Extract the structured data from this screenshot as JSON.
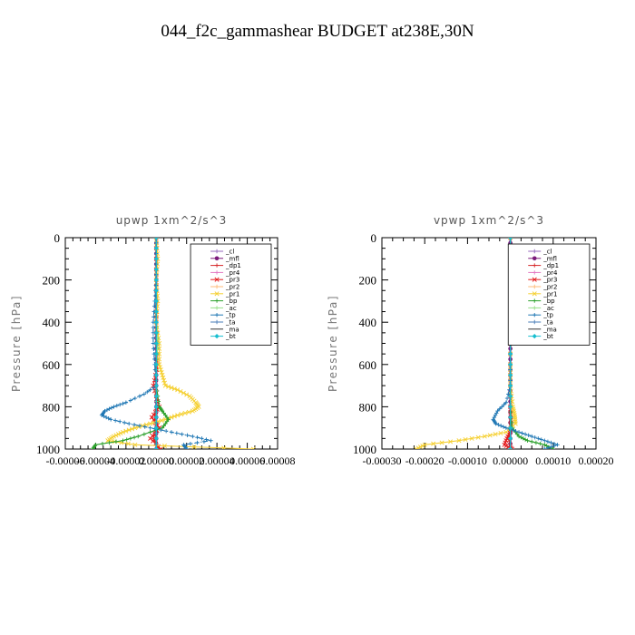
{
  "page": {
    "title": "044_f2c_gammashear  BUDGET at238E,30N"
  },
  "chart_data": [
    {
      "type": "line",
      "title": "upwp   1xm^2/s^3",
      "ylabel": "Pressure [hPa]",
      "xlim": [
        -6e-05,
        8e-05
      ],
      "ylim": [
        1000,
        0
      ],
      "y_ticks": [
        0,
        200,
        400,
        600,
        800,
        1000
      ],
      "x_tick_labels": [
        "-0.00006",
        "-0.00004",
        "-0.00002",
        "0.00000",
        "0.00002",
        "0.00004",
        "0.00006",
        "0.00008"
      ],
      "x_tick_values": [
        -6e-05,
        -4e-05,
        -2e-05,
        0.0,
        2e-05,
        4e-05,
        6e-05,
        8e-05
      ],
      "legend_position": "top-right",
      "series": [
        {
          "name": "_cl",
          "color": "#9467bd",
          "marker": "+",
          "p": [
            0,
            100,
            200,
            300,
            400,
            500,
            600,
            700,
            800,
            900,
            1000
          ],
          "v": [
            0,
            0,
            0,
            0,
            0,
            0,
            0,
            0,
            0,
            0,
            0
          ]
        },
        {
          "name": "_mfl",
          "color": "#7b1a7b",
          "marker": "dot",
          "p": [
            0,
            100,
            200,
            300,
            400,
            500,
            600,
            700,
            800,
            900,
            1000
          ],
          "v": [
            0,
            0,
            0,
            0,
            0,
            0,
            0,
            0,
            0,
            0,
            0
          ]
        },
        {
          "name": "_dp1",
          "color": "#d62728",
          "marker": "+",
          "p": [
            0,
            200,
            400,
            600,
            700,
            800,
            850,
            900,
            950,
            1000
          ],
          "v": [
            0,
            0,
            0,
            0,
            0,
            0,
            -1e-06,
            0,
            -2e-06,
            2e-06
          ]
        },
        {
          "name": "_pr4",
          "color": "#e377c2",
          "marker": "+",
          "p": [
            0,
            200,
            400,
            600,
            800,
            900,
            1000
          ],
          "v": [
            0,
            0,
            0,
            0,
            0,
            0,
            0
          ]
        },
        {
          "name": "_pr3",
          "color": "#e31a1c",
          "marker": "x",
          "p": [
            0,
            200,
            400,
            600,
            700,
            800,
            850,
            900,
            950,
            1000
          ],
          "v": [
            0,
            0,
            0,
            1e-06,
            -2e-06,
            2e-06,
            -3e-06,
            2e-06,
            -4e-06,
            3e-06
          ]
        },
        {
          "name": "_pr2",
          "color": "#ffbb78",
          "marker": "+",
          "p": [
            0,
            200,
            400,
            600,
            800,
            900,
            1000
          ],
          "v": [
            0,
            0,
            0,
            0,
            0,
            0,
            0
          ]
        },
        {
          "name": "_pr1",
          "color": "#f5d033",
          "marker": "x",
          "p": [
            0,
            100,
            200,
            300,
            400,
            500,
            600,
            650,
            700,
            720,
            750,
            780,
            800,
            820,
            840,
            860,
            880,
            900,
            920,
            940,
            960,
            980,
            1000
          ],
          "v": [
            0,
            1e-06,
            0,
            1e-06,
            0,
            2e-06,
            2e-06,
            4e-06,
            6e-06,
            1.4e-05,
            2.2e-05,
            2.6e-05,
            2.8e-05,
            2.4e-05,
            1.4e-05,
            6e-06,
            -4e-06,
            -1.4e-05,
            -2.2e-05,
            -2.8e-05,
            -3.2e-05,
            -1.4e-05,
            6.4e-05
          ]
        },
        {
          "name": "_bp",
          "color": "#2ca02c",
          "marker": "+",
          "p": [
            0,
            200,
            400,
            500,
            600,
            700,
            800,
            820,
            860,
            900,
            940,
            960,
            980,
            1000
          ],
          "v": [
            0,
            0,
            0,
            1e-06,
            0,
            0,
            2e-06,
            4e-06,
            8e-06,
            4e-06,
            -1.2e-05,
            -2.2e-05,
            -4e-05,
            -4.2e-05
          ]
        },
        {
          "name": "_ac",
          "color": "#98df8a",
          "marker": "+",
          "p": [
            0,
            200,
            400,
            500,
            600,
            700,
            800,
            900,
            1000
          ],
          "v": [
            0,
            0,
            0,
            1e-06,
            0,
            0,
            0,
            0,
            0
          ]
        },
        {
          "name": "_tp",
          "color": "#1f77b4",
          "marker": "+",
          "p": [
            0,
            100,
            200,
            300,
            400,
            500,
            600,
            700,
            740,
            780,
            800,
            820,
            840,
            860,
            880,
            900,
            920,
            940,
            960,
            980,
            1000
          ],
          "v": [
            0,
            0,
            0,
            -1e-06,
            -2e-06,
            -2e-06,
            -1e-06,
            0,
            -8e-06,
            -2e-05,
            -2.8e-05,
            -3.4e-05,
            -3.6e-05,
            -3e-05,
            -1.8e-05,
            -4e-06,
            1e-05,
            2.4e-05,
            3.6e-05,
            1.8e-05,
            2e-05
          ]
        },
        {
          "name": "_ta",
          "color": "#4a7db8",
          "marker": "+",
          "p": [
            0,
            200,
            400,
            600,
            800,
            900,
            1000
          ],
          "v": [
            0,
            0,
            0,
            0,
            0,
            0,
            0
          ]
        },
        {
          "name": "_ma",
          "color": "#333333",
          "marker": "dash",
          "p": [
            0,
            200,
            400,
            600,
            800,
            1000
          ],
          "v": [
            0,
            0,
            0,
            0,
            0,
            0
          ]
        },
        {
          "name": "_bt",
          "color": "#17becf",
          "marker": "diamond",
          "p": [
            0,
            200,
            400,
            600,
            800,
            1000
          ],
          "v": [
            0,
            0,
            0,
            0,
            0,
            0
          ]
        }
      ]
    },
    {
      "type": "line",
      "title": "vpwp   1xm^2/s^3",
      "ylabel": "Pressure [hPa]",
      "xlim": [
        -0.0003,
        0.0002
      ],
      "ylim": [
        1000,
        0
      ],
      "y_ticks": [
        0,
        200,
        400,
        600,
        800,
        1000
      ],
      "x_tick_labels": [
        "-0.00030",
        "-0.00020",
        "-0.00010",
        "0.00000",
        "0.00010",
        "0.00020"
      ],
      "x_tick_values": [
        -0.0003,
        -0.0002,
        -0.0001,
        0.0,
        0.0001,
        0.0002
      ],
      "legend_position": "top-right",
      "series": [
        {
          "name": "_cl",
          "color": "#9467bd",
          "marker": "+",
          "p": [
            0,
            100,
            200,
            300,
            400,
            500,
            600,
            700,
            800,
            900,
            1000
          ],
          "v": [
            0,
            0,
            0,
            0,
            0,
            0,
            0,
            0,
            0,
            0,
            0
          ]
        },
        {
          "name": "_mfl",
          "color": "#7b1a7b",
          "marker": "dot",
          "p": [
            0,
            100,
            200,
            300,
            400,
            500,
            600,
            700,
            800,
            900,
            1000
          ],
          "v": [
            0,
            0,
            0,
            0,
            0,
            0,
            0,
            0,
            0,
            0,
            0
          ]
        },
        {
          "name": "_dp1",
          "color": "#d62728",
          "marker": "+",
          "p": [
            0,
            200,
            400,
            600,
            800,
            900,
            950,
            1000
          ],
          "v": [
            0,
            0,
            0,
            0,
            0,
            0,
            -4e-06,
            4e-06
          ]
        },
        {
          "name": "_pr4",
          "color": "#e377c2",
          "marker": "+",
          "p": [
            0,
            200,
            400,
            600,
            800,
            1000
          ],
          "v": [
            0,
            0,
            0,
            0,
            0,
            0
          ]
        },
        {
          "name": "_pr3",
          "color": "#e31a1c",
          "marker": "x",
          "p": [
            0,
            200,
            400,
            600,
            800,
            900,
            940,
            980,
            1000
          ],
          "v": [
            0,
            0,
            0,
            0,
            0,
            2e-06,
            -6e-06,
            -1.4e-05,
            4e-06
          ]
        },
        {
          "name": "_pr2",
          "color": "#ffbb78",
          "marker": "+",
          "p": [
            0,
            200,
            400,
            600,
            800,
            1000
          ],
          "v": [
            0,
            0,
            0,
            0,
            0,
            0
          ]
        },
        {
          "name": "_pr1",
          "color": "#f5d033",
          "marker": "x",
          "p": [
            0,
            200,
            400,
            600,
            700,
            800,
            840,
            880,
            920,
            940,
            960,
            980,
            1000
          ],
          "v": [
            0,
            0,
            0,
            0,
            0,
            6e-06,
            1e-05,
            1.2e-05,
            -1e-05,
            -6e-05,
            -0.00012,
            -0.0002,
            -0.00022
          ]
        },
        {
          "name": "_bp",
          "color": "#2ca02c",
          "marker": "+",
          "p": [
            0,
            200,
            400,
            600,
            800,
            900,
            940,
            960,
            980,
            1000
          ],
          "v": [
            0,
            0,
            0,
            0,
            0,
            4e-06,
            2e-05,
            4e-05,
            8e-05,
            0.0001
          ]
        },
        {
          "name": "_ac",
          "color": "#98df8a",
          "marker": "+",
          "p": [
            0,
            200,
            400,
            600,
            800,
            1000
          ],
          "v": [
            0,
            0,
            0,
            0,
            0,
            0
          ]
        },
        {
          "name": "_tp",
          "color": "#1f77b4",
          "marker": "+",
          "p": [
            0,
            200,
            400,
            600,
            700,
            780,
            820,
            860,
            880,
            900,
            920,
            940,
            960,
            980,
            1000
          ],
          "v": [
            0,
            0,
            0,
            0,
            0,
            -1e-05,
            -3e-05,
            -4e-05,
            -3.4e-05,
            -1e-05,
            2e-05,
            5e-05,
            8e-05,
            0.00011,
            8e-05
          ]
        },
        {
          "name": "_ta",
          "color": "#4a7db8",
          "marker": "+",
          "p": [
            0,
            200,
            400,
            600,
            800,
            1000
          ],
          "v": [
            0,
            0,
            0,
            0,
            0,
            0
          ]
        },
        {
          "name": "_ma",
          "color": "#333333",
          "marker": "dash",
          "p": [
            0,
            200,
            400,
            600,
            800,
            1000
          ],
          "v": [
            0,
            0,
            0,
            0,
            0,
            0
          ]
        },
        {
          "name": "_bt",
          "color": "#17becf",
          "marker": "diamond",
          "p": [
            0,
            200,
            400,
            600,
            800,
            1000
          ],
          "v": [
            0,
            0,
            0,
            0,
            0,
            0
          ]
        }
      ]
    }
  ]
}
